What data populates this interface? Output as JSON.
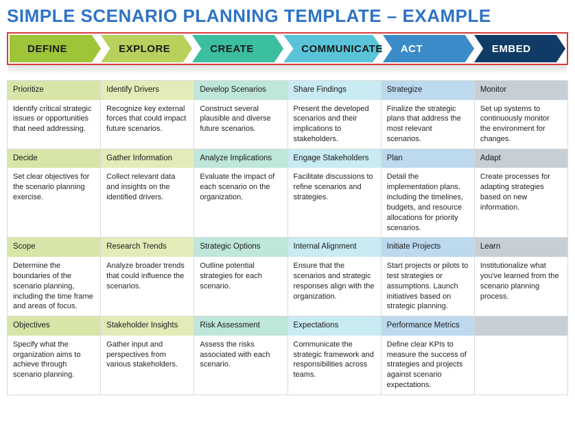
{
  "title": "SIMPLE SCENARIO PLANNING TEMPLATE – EXAMPLE",
  "title_color": "#2d74c4",
  "chevron_border_color": "#d73a3a",
  "phases": [
    {
      "label": "DEFINE",
      "fill": "#9ec438",
      "text": "#1a1a1a",
      "header_bg": "#d7e6a8"
    },
    {
      "label": "EXPLORE",
      "fill": "#b7d15c",
      "text": "#1a1a1a",
      "header_bg": "#e3ecb9"
    },
    {
      "label": "CREATE",
      "fill": "#3bbfa0",
      "text": "#1a1a1a",
      "header_bg": "#bfe6da"
    },
    {
      "label": "COMMUNICATE",
      "fill": "#59c4d9",
      "text": "#1a1a1a",
      "header_bg": "#c9ebf2"
    },
    {
      "label": "ACT",
      "fill": "#3b8bc9",
      "text": "#ffffff",
      "header_bg": "#bcd9ee"
    },
    {
      "label": "EMBED",
      "fill": "#0f3b66",
      "text": "#ffffff",
      "header_bg": "#c7cfd6"
    }
  ],
  "rows": [
    [
      {
        "h": "Prioritize",
        "b": "Identify critical strategic issues or opportunities that need addressing."
      },
      {
        "h": "Identify Drivers",
        "b": "Recognize key external forces that could impact future scenarios."
      },
      {
        "h": "Develop Scenarios",
        "b": "Construct several plausible and diverse future scenarios."
      },
      {
        "h": "Share Findings",
        "b": "Present the developed scenarios and their implications to stakeholders."
      },
      {
        "h": "Strategize",
        "b": "Finalize the strategic plans that address the most relevant scenarios."
      },
      {
        "h": "Monitor",
        "b": "Set up systems to continuously monitor the environment for changes."
      }
    ],
    [
      {
        "h": "Decide",
        "b": "Set clear objectives for the scenario planning exercise."
      },
      {
        "h": "Gather Information",
        "b": "Collect relevant data and insights on the identified drivers."
      },
      {
        "h": "Analyze Implications",
        "b": "Evaluate the impact of each scenario on the organization."
      },
      {
        "h": "Engage Stakeholders",
        "b": "Facilitate discussions to refine scenarios and strategies."
      },
      {
        "h": "Plan",
        "b": "Detail the implementation plans, including the timelines, budgets, and resource allocations for priority scenarios."
      },
      {
        "h": "Adapt",
        "b": "Create processes for adapting strategies based on new information."
      }
    ],
    [
      {
        "h": "Scope",
        "b": "Determine the boundaries of the scenario planning, including the time frame and areas of focus."
      },
      {
        "h": "Research Trends",
        "b": "Analyze broader trends that could influence the scenarios."
      },
      {
        "h": "Strategic Options",
        "b": "Outline potential strategies for each scenario."
      },
      {
        "h": "Internal Alignment",
        "b": "Ensure that the scenarios and strategic responses align with the organization."
      },
      {
        "h": "Initiate Projects",
        "b": "Start projects or pilots to test strategies or assumptions. Launch initiatives based on strategic planning."
      },
      {
        "h": "Learn",
        "b": "Institutionalize what you've learned from the scenario planning process."
      }
    ],
    [
      {
        "h": "Objectives",
        "b": "Specify what the organization aims to achieve through scenario planning."
      },
      {
        "h": "Stakeholder Insights",
        "b": "Gather input and perspectives from various stakeholders."
      },
      {
        "h": "Risk Assessment",
        "b": "Assess the risks associated with each scenario."
      },
      {
        "h": "Expectations",
        "b": "Communicate the strategic framework and responsibilities across teams."
      },
      {
        "h": "Performance Metrics",
        "b": "Define clear KPIs to measure the success of strategies and projects against scenario expectations."
      },
      {
        "h": "",
        "b": ""
      }
    ]
  ]
}
